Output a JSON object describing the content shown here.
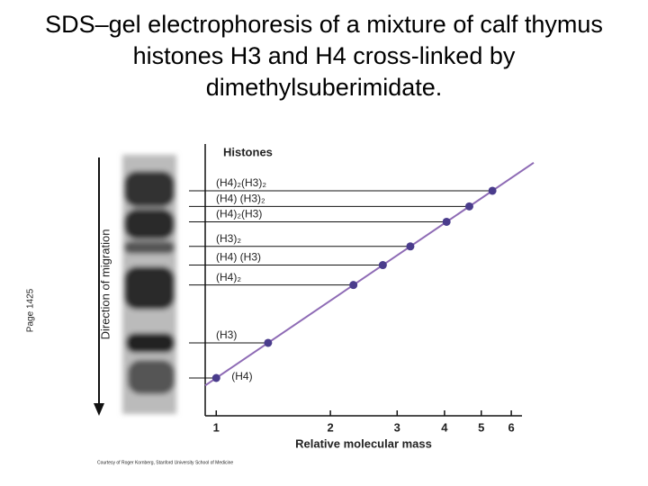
{
  "chart_data": {
    "type": "scatter",
    "title": "SDS–gel electrophoresis of a mixture of calf thymus histones H3 and H4 cross-linked by dimethylsuberimidate.",
    "page_label": "Page 1425",
    "legend_title": "Histones",
    "x_label": "Relative molecular mass",
    "y_label": "Direction of migration",
    "credit": "Courtesy of Roger Kornberg, Stanford University School of Medicine",
    "x_scale": "log",
    "xlim": [
      0.9,
      6.8
    ],
    "xticks": [
      1,
      2,
      3,
      4,
      5,
      6
    ],
    "color": "#8e6bb5",
    "categories": [
      "(H4)",
      "(H3)",
      "(H4)₂",
      "(H4) (H3)",
      "(H3)₂",
      "(H4)₂(H3)",
      "(H4) (H3)₂",
      "(H4)₂(H3)₂"
    ],
    "x": [
      1,
      1.37,
      2.3,
      2.75,
      3.25,
      4.05,
      4.65,
      5.35
    ]
  }
}
